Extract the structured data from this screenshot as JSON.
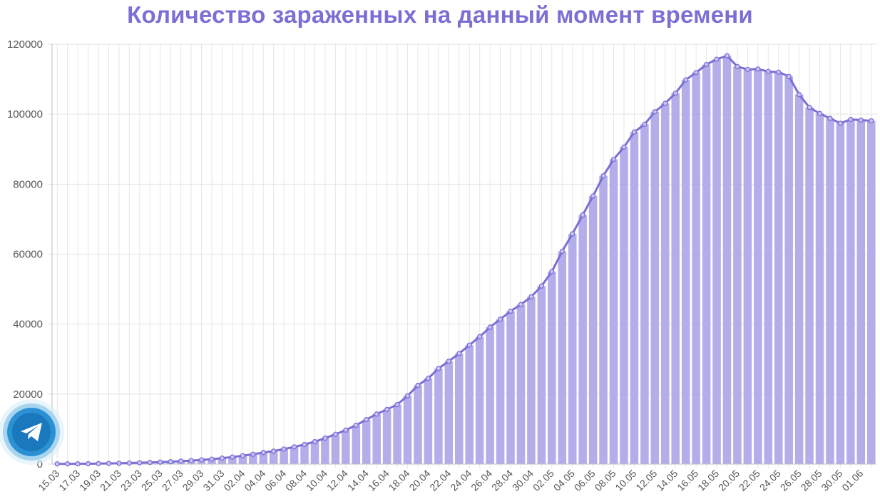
{
  "chart_data": {
    "type": "bar",
    "title": "Количество зараженных на данный момент времени",
    "xlabel": "",
    "ylabel": "",
    "ylim": [
      0,
      120000
    ],
    "yticks": [
      0,
      20000,
      40000,
      60000,
      80000,
      100000,
      120000
    ],
    "grid": true,
    "legend": "none",
    "bar_color": "#b3aeea",
    "line_color": "#7b6fd6",
    "x": [
      "15.03",
      "16.03",
      "17.03",
      "18.03",
      "19.03",
      "20.03",
      "21.03",
      "22.03",
      "23.03",
      "24.03",
      "25.03",
      "26.03",
      "27.03",
      "28.03",
      "29.03",
      "30.03",
      "31.03",
      "01.04",
      "02.04",
      "03.04",
      "04.04",
      "05.04",
      "06.04",
      "07.04",
      "08.04",
      "09.04",
      "10.04",
      "11.04",
      "12.04",
      "13.04",
      "14.04",
      "15.04",
      "16.04",
      "17.04",
      "18.04",
      "19.04",
      "20.04",
      "21.04",
      "22.04",
      "23.04",
      "24.04",
      "25.04",
      "26.04",
      "27.04",
      "28.04",
      "29.04",
      "30.04",
      "01.05",
      "02.05",
      "03.05",
      "04.05",
      "05.05",
      "06.05",
      "07.05",
      "08.05",
      "09.05",
      "10.05",
      "11.05",
      "12.05",
      "13.05",
      "14.05",
      "15.05",
      "16.05",
      "17.05",
      "18.05",
      "19.05",
      "20.05",
      "21.05",
      "22.05",
      "23.05",
      "24.05",
      "25.05",
      "26.05",
      "27.05",
      "28.05",
      "29.05",
      "30.05",
      "31.05",
      "01.06",
      "02.06"
    ],
    "xticks_shown": [
      "15.03",
      "17.03",
      "19.03",
      "21.03",
      "23.03",
      "25.03",
      "27.03",
      "29.03",
      "31.03",
      "02.04",
      "04.04",
      "06.04",
      "08.04",
      "10.04",
      "12.04",
      "14.04",
      "16.04",
      "18.04",
      "20.04",
      "22.04",
      "24.04",
      "26.04",
      "28.04",
      "30.04",
      "02.05",
      "04.05",
      "06.05",
      "08.05",
      "10.05",
      "12.05",
      "14.05",
      "16.05",
      "18.05",
      "20.05",
      "22.05",
      "24.05",
      "26.05",
      "28.05",
      "30.05",
      "01.06"
    ],
    "series": [
      {
        "values": [
          50,
          60,
          80,
          100,
          140,
          180,
          230,
          300,
          380,
          470,
          560,
          680,
          840,
          1000,
          1200,
          1400,
          1700,
          2000,
          2400,
          2800,
          3300,
          3700,
          4300,
          4900,
          5600,
          6400,
          7400,
          8500,
          9700,
          11100,
          12700,
          14300,
          15600,
          17000,
          19500,
          22500,
          24500,
          27300,
          29400,
          31600,
          34000,
          36400,
          39100,
          41400,
          43700,
          45600,
          47800,
          50900,
          55000,
          60800,
          65800,
          71200,
          76600,
          82400,
          87100,
          90600,
          94900,
          97100,
          100700,
          103100,
          106000,
          109800,
          111900,
          114200,
          115700,
          116700,
          113600,
          112800,
          112900,
          112200,
          112000,
          110800,
          105600,
          101900,
          100200,
          98800,
          97400,
          98500,
          98300,
          98100
        ]
      }
    ]
  },
  "widgets": {
    "telegram_icon": "telegram-plane-icon",
    "telegram_color": "#1e88c8"
  }
}
